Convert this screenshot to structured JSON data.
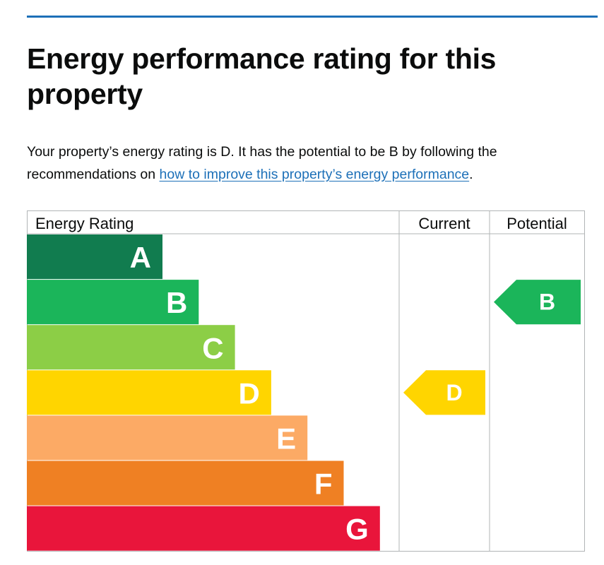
{
  "page": {
    "title": "Energy performance rating for this property",
    "summary_before_link": "Your property’s energy rating is D. It has the potential to be B by following the recommendations on ",
    "link_text": "how to improve this property’s energy performance",
    "summary_after_link": "."
  },
  "chart_data": {
    "type": "table",
    "headers": {
      "rating": "Energy Rating",
      "current": "Current",
      "potential": "Potential"
    },
    "bands": [
      {
        "letter": "A",
        "color": "#117c4f"
      },
      {
        "letter": "B",
        "color": "#1bb55a"
      },
      {
        "letter": "C",
        "color": "#8cce46"
      },
      {
        "letter": "D",
        "color": "#ffd500"
      },
      {
        "letter": "E",
        "color": "#fcaa65"
      },
      {
        "letter": "F",
        "color": "#ef8023"
      },
      {
        "letter": "G",
        "color": "#e9153b"
      }
    ],
    "current": {
      "letter": "D",
      "color": "#ffd500"
    },
    "potential": {
      "letter": "B",
      "color": "#1bb55a"
    }
  }
}
